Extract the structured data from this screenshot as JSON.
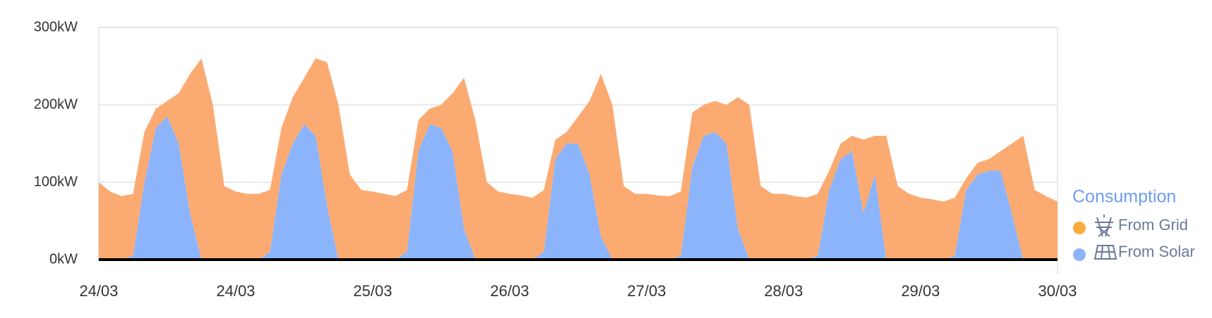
{
  "chart_data": {
    "type": "stacked_area",
    "legend_title": "Consumption",
    "x": [
      0,
      2,
      4,
      6,
      8,
      10,
      12,
      14,
      16,
      18,
      20,
      22,
      24,
      26,
      28,
      30,
      32,
      34,
      36,
      38,
      40,
      42,
      44,
      46,
      48,
      50,
      52,
      54,
      56,
      58,
      60,
      62,
      64,
      66,
      68,
      70,
      72,
      74,
      76,
      78,
      80,
      82,
      84,
      86,
      88,
      90,
      92,
      94,
      96,
      98,
      100,
      102,
      104,
      106,
      108,
      110,
      112,
      114,
      116,
      118,
      120,
      122,
      124,
      126,
      128,
      130,
      132,
      134,
      136,
      138,
      140,
      142,
      144,
      146,
      148,
      150,
      152,
      154,
      156,
      158,
      160,
      162,
      164,
      166,
      168
    ],
    "series": [
      {
        "name": "From Grid",
        "color": "#fbab72",
        "values": [
          100,
          88,
          82,
          80,
          65,
          25,
          20,
          65,
          180,
          260,
          200,
          95,
          88,
          85,
          85,
          80,
          60,
          60,
          60,
          100,
          185,
          200,
          110,
          90,
          88,
          85,
          82,
          80,
          40,
          20,
          30,
          75,
          195,
          180,
          100,
          88,
          85,
          83,
          80,
          80,
          25,
          15,
          35,
          95,
          210,
          200,
          95,
          85,
          85,
          83,
          82,
          83,
          70,
          40,
          40,
          50,
          170,
          200,
          95,
          85,
          85,
          82,
          80,
          80,
          25,
          20,
          20,
          95,
          50,
          160,
          95,
          85,
          80,
          78,
          75,
          75,
          15,
          15,
          15,
          25,
          90,
          160,
          90,
          82,
          75
        ]
      },
      {
        "name": "From Solar",
        "color": "#8cb4fb",
        "values": [
          0,
          0,
          0,
          5,
          100,
          170,
          185,
          150,
          60,
          0,
          0,
          0,
          0,
          0,
          0,
          10,
          110,
          150,
          175,
          160,
          70,
          0,
          0,
          0,
          0,
          0,
          0,
          10,
          140,
          175,
          170,
          140,
          40,
          0,
          0,
          0,
          0,
          0,
          0,
          10,
          130,
          150,
          150,
          110,
          30,
          0,
          0,
          0,
          0,
          0,
          0,
          5,
          120,
          160,
          165,
          150,
          40,
          0,
          0,
          0,
          0,
          0,
          0,
          5,
          90,
          130,
          140,
          60,
          110,
          0,
          0,
          0,
          0,
          0,
          0,
          5,
          90,
          110,
          115,
          115,
          60,
          0,
          0,
          0,
          0
        ]
      }
    ],
    "xlim": [
      0,
      168
    ],
    "xticks": [
      {
        "value": 0,
        "label": "24/03"
      },
      {
        "value": 24,
        "label": "24/03"
      },
      {
        "value": 48,
        "label": "25/03"
      },
      {
        "value": 72,
        "label": "26/03"
      },
      {
        "value": 96,
        "label": "27/03"
      },
      {
        "value": 120,
        "label": "28/03"
      },
      {
        "value": 144,
        "label": "29/03"
      },
      {
        "value": 168,
        "label": "30/03"
      }
    ],
    "ylim": [
      0,
      300
    ],
    "yticks": [
      {
        "value": 0,
        "label": "0kW"
      },
      {
        "value": 100,
        "label": "100kW"
      },
      {
        "value": 200,
        "label": "200kW"
      },
      {
        "value": 300,
        "label": "300kW"
      }
    ],
    "grid": true
  }
}
